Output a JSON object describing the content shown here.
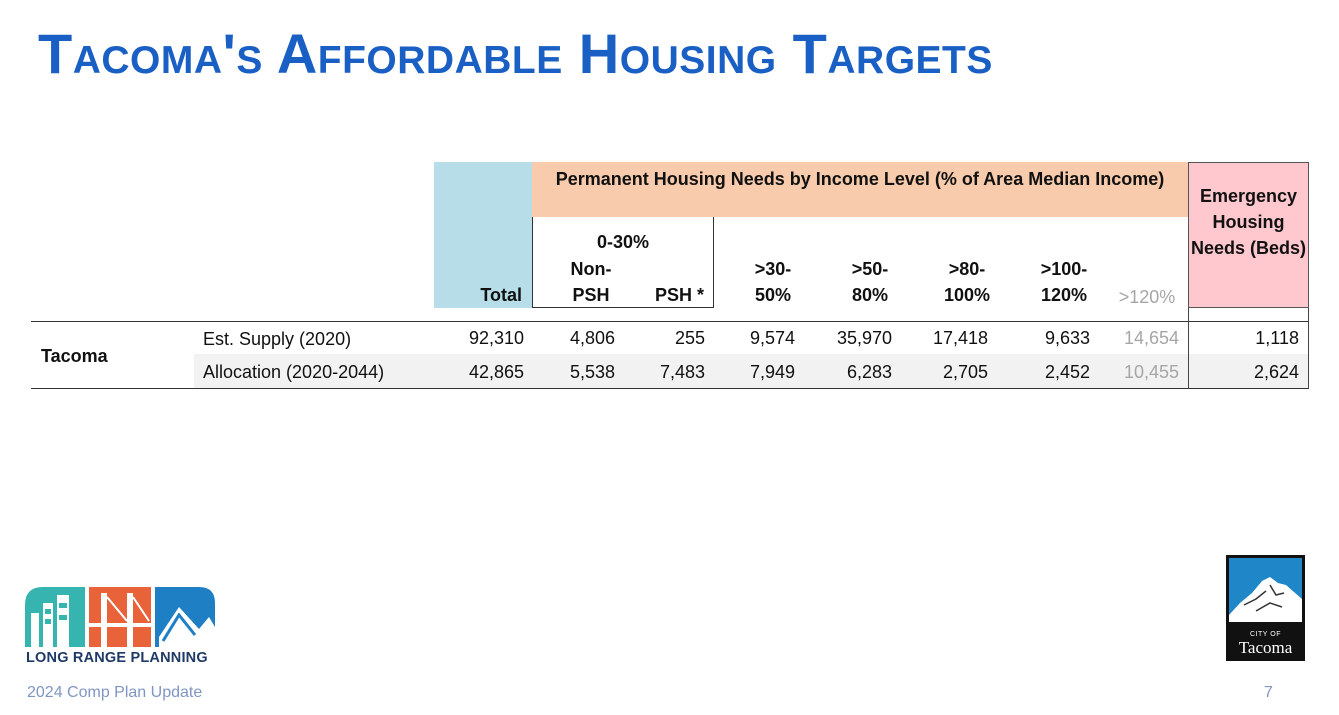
{
  "title": "Tacoma's Affordable Housing Targets",
  "table": {
    "group_header_permanent": "Permanent Housing Needs by Income Level (% of Area Median Income)",
    "group_header_emergency": "Emergency Housing Needs (Beds)",
    "subgroup_0_30": "0-30%",
    "columns": {
      "total": "Total",
      "non_psh_line1": "Non-",
      "non_psh_line2": "PSH",
      "psh": "PSH *",
      "c30_50_line1": ">30-",
      "c30_50_line2": "50%",
      "c50_80_line1": ">50-",
      "c50_80_line2": "80%",
      "c80_100_line1": ">80-",
      "c80_100_line2": "100%",
      "c100_120_line1": ">100-",
      "c100_120_line2": "120%",
      "c120": ">120%"
    },
    "jurisdiction": "Tacoma",
    "rows": [
      {
        "label": "Est. Supply (2020)",
        "total": "92,310",
        "non_psh": "4,806",
        "psh": "255",
        "c30_50": "9,574",
        "c50_80": "35,970",
        "c80_100": "17,418",
        "c100_120": "9,633",
        "c120": "14,654",
        "emergency": "1,118"
      },
      {
        "label": "Allocation (2020-2044)",
        "total": "42,865",
        "non_psh": "5,538",
        "psh": "7,483",
        "c30_50": "7,949",
        "c50_80": "6,283",
        "c80_100": "2,705",
        "c100_120": "2,452",
        "c120": "10,455",
        "emergency": "2,624"
      }
    ]
  },
  "logos": {
    "long_range_planning": "LONG RANGE PLANNING",
    "city_of": "CITY OF",
    "tacoma": "Tacoma"
  },
  "footer": {
    "left": "2024 Comp Plan Update",
    "page_number": "7"
  },
  "colors": {
    "title": "#1a5fc4",
    "total_bg": "#b7dde8",
    "permanent_bg": "#f8cbad",
    "emergency_bg": "#ffc7ce"
  }
}
